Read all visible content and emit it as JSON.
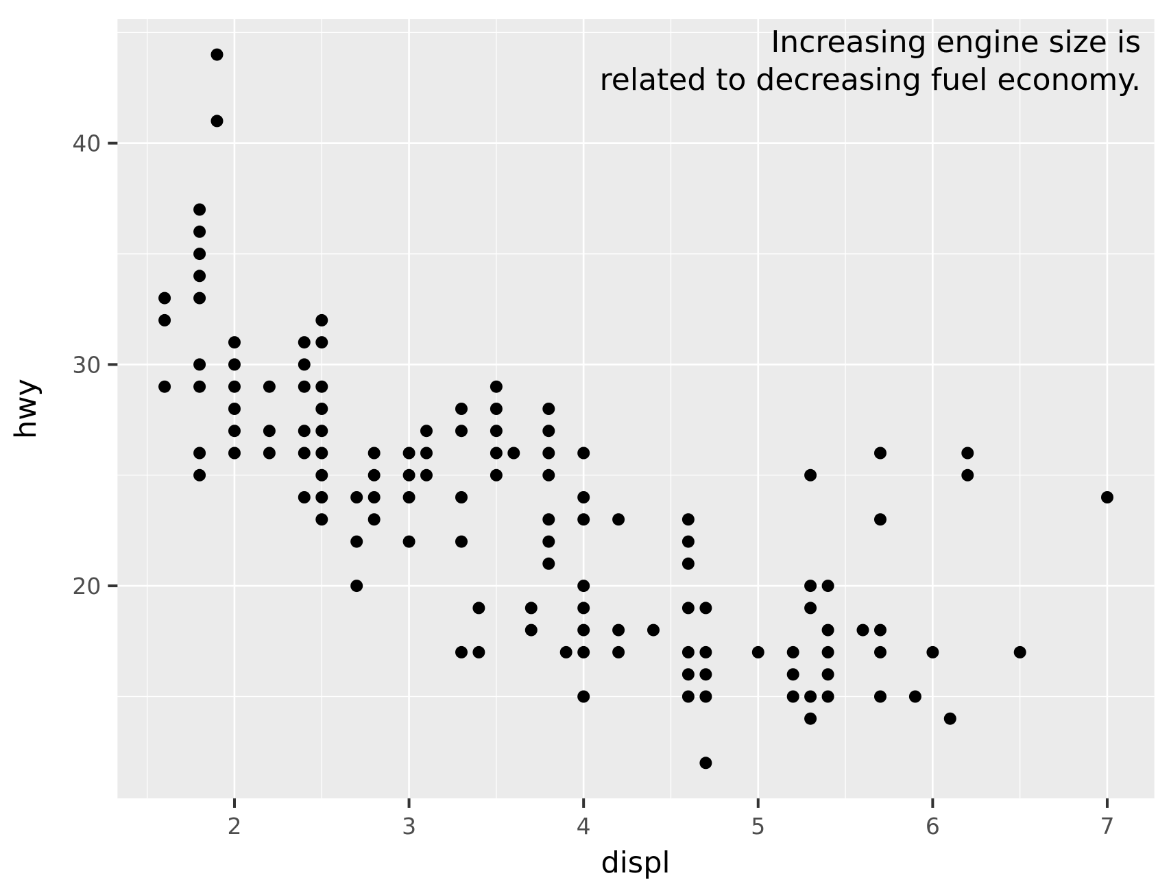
{
  "chart_data": {
    "type": "scatter",
    "xlabel": "displ",
    "ylabel": "hwy",
    "annotation": {
      "lines": [
        "Increasing engine size is",
        "related to decreasing fuel economy."
      ],
      "align": "right",
      "position": "top-right-inside-panel"
    },
    "x_ticks": [
      2,
      3,
      4,
      5,
      6,
      7
    ],
    "y_ticks": [
      20,
      30,
      40
    ],
    "x_minor_gridlines": [
      1.5,
      2.5,
      3.5,
      4.5,
      5.5,
      6.5
    ],
    "y_minor_gridlines": [
      15,
      25,
      35,
      45
    ],
    "xlim": [
      1.33,
      7.27
    ],
    "ylim": [
      10.4,
      45.6
    ],
    "grid": "on",
    "legend": "none",
    "points": [
      [
        1.6,
        33
      ],
      [
        1.6,
        32
      ],
      [
        1.6,
        29
      ],
      [
        1.8,
        37
      ],
      [
        1.8,
        36
      ],
      [
        1.8,
        35
      ],
      [
        1.8,
        34
      ],
      [
        1.8,
        33
      ],
      [
        1.8,
        30
      ],
      [
        1.8,
        29
      ],
      [
        1.8,
        26
      ],
      [
        1.8,
        25
      ],
      [
        1.9,
        44
      ],
      [
        1.9,
        41
      ],
      [
        2.0,
        31
      ],
      [
        2.0,
        30
      ],
      [
        2.0,
        29
      ],
      [
        2.0,
        28
      ],
      [
        2.0,
        27
      ],
      [
        2.0,
        26
      ],
      [
        2.2,
        29
      ],
      [
        2.2,
        27
      ],
      [
        2.2,
        26
      ],
      [
        2.4,
        31
      ],
      [
        2.4,
        30
      ],
      [
        2.4,
        29
      ],
      [
        2.4,
        27
      ],
      [
        2.4,
        26
      ],
      [
        2.4,
        24
      ],
      [
        2.5,
        32
      ],
      [
        2.5,
        31
      ],
      [
        2.5,
        29
      ],
      [
        2.5,
        28
      ],
      [
        2.5,
        27
      ],
      [
        2.5,
        26
      ],
      [
        2.5,
        25
      ],
      [
        2.5,
        24
      ],
      [
        2.5,
        23
      ],
      [
        2.7,
        24
      ],
      [
        2.7,
        22
      ],
      [
        2.7,
        20
      ],
      [
        2.8,
        26
      ],
      [
        2.8,
        25
      ],
      [
        2.8,
        24
      ],
      [
        2.8,
        23
      ],
      [
        3.0,
        26
      ],
      [
        3.0,
        25
      ],
      [
        3.0,
        24
      ],
      [
        3.0,
        22
      ],
      [
        3.1,
        27
      ],
      [
        3.1,
        26
      ],
      [
        3.1,
        25
      ],
      [
        3.3,
        28
      ],
      [
        3.3,
        27
      ],
      [
        3.3,
        24
      ],
      [
        3.3,
        22
      ],
      [
        3.3,
        17
      ],
      [
        3.4,
        19
      ],
      [
        3.4,
        17
      ],
      [
        3.5,
        29
      ],
      [
        3.5,
        28
      ],
      [
        3.5,
        27
      ],
      [
        3.5,
        26
      ],
      [
        3.5,
        25
      ],
      [
        3.6,
        26
      ],
      [
        3.7,
        19
      ],
      [
        3.7,
        18
      ],
      [
        3.8,
        28
      ],
      [
        3.8,
        27
      ],
      [
        3.8,
        26
      ],
      [
        3.8,
        25
      ],
      [
        3.8,
        23
      ],
      [
        3.8,
        22
      ],
      [
        3.8,
        21
      ],
      [
        3.9,
        17
      ],
      [
        4.0,
        26
      ],
      [
        4.0,
        24
      ],
      [
        4.0,
        23
      ],
      [
        4.0,
        20
      ],
      [
        4.0,
        19
      ],
      [
        4.0,
        18
      ],
      [
        4.0,
        17
      ],
      [
        4.0,
        15
      ],
      [
        4.2,
        23
      ],
      [
        4.2,
        18
      ],
      [
        4.2,
        17
      ],
      [
        4.4,
        18
      ],
      [
        4.6,
        23
      ],
      [
        4.6,
        22
      ],
      [
        4.6,
        21
      ],
      [
        4.6,
        19
      ],
      [
        4.6,
        17
      ],
      [
        4.6,
        16
      ],
      [
        4.6,
        15
      ],
      [
        4.7,
        19
      ],
      [
        4.7,
        17
      ],
      [
        4.7,
        16
      ],
      [
        4.7,
        15
      ],
      [
        4.7,
        12
      ],
      [
        5.0,
        17
      ],
      [
        5.2,
        17
      ],
      [
        5.2,
        16
      ],
      [
        5.2,
        15
      ],
      [
        5.3,
        25
      ],
      [
        5.3,
        20
      ],
      [
        5.3,
        19
      ],
      [
        5.3,
        15
      ],
      [
        5.3,
        14
      ],
      [
        5.4,
        20
      ],
      [
        5.4,
        18
      ],
      [
        5.4,
        17
      ],
      [
        5.4,
        16
      ],
      [
        5.4,
        15
      ],
      [
        5.6,
        18
      ],
      [
        5.7,
        26
      ],
      [
        5.7,
        23
      ],
      [
        5.7,
        18
      ],
      [
        5.7,
        17
      ],
      [
        5.7,
        15
      ],
      [
        5.9,
        15
      ],
      [
        6.0,
        17
      ],
      [
        6.1,
        14
      ],
      [
        6.2,
        26
      ],
      [
        6.2,
        25
      ],
      [
        6.5,
        17
      ],
      [
        7.0,
        24
      ]
    ]
  },
  "colors": {
    "background": "#FFFFFF",
    "panel_bg": "#EBEBEB",
    "grid": "#FFFFFF",
    "point": "#000000",
    "tick_mark": "#333333",
    "tick_label": "#4D4D4D",
    "axis_title": "#000000",
    "annotation": "#000000"
  }
}
